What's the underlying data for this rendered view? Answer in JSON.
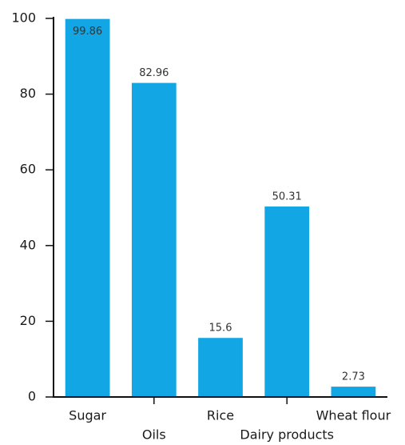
{
  "chart_data": {
    "type": "bar",
    "categories": [
      "Sugar",
      "Oils",
      "Rice",
      "Dairy products",
      "Wheat flour"
    ],
    "values": [
      99.86,
      82.96,
      15.6,
      50.31,
      2.73
    ],
    "color": "#12a6e4",
    "ylim": [
      0,
      100
    ],
    "yticks": [
      0,
      20,
      40,
      60,
      80,
      100
    ],
    "grid": false
  }
}
